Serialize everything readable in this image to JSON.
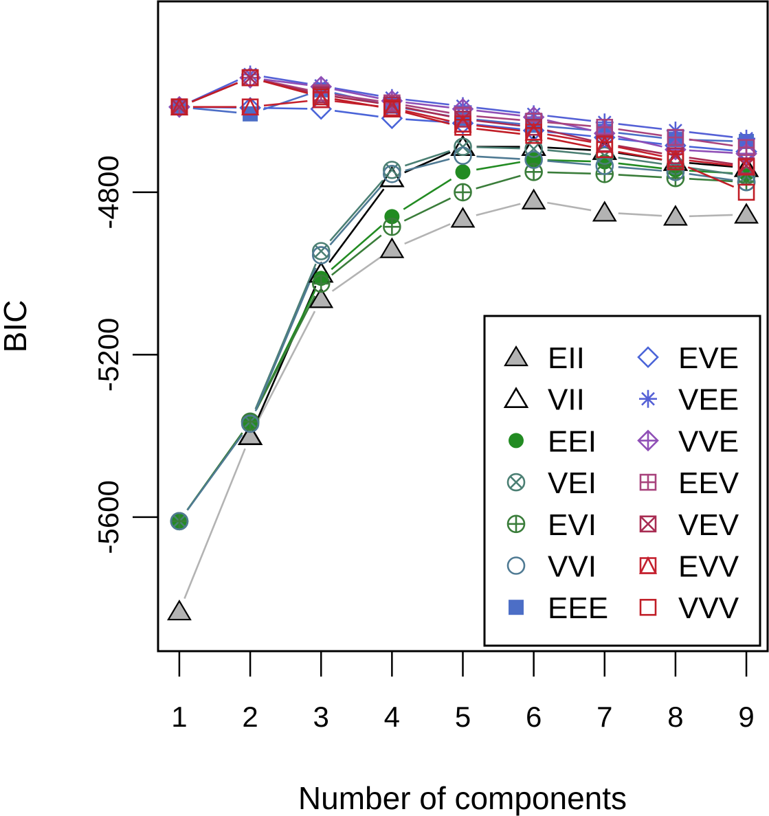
{
  "chart_data": {
    "type": "line",
    "xlabel": "Number of components",
    "ylabel": "BIC",
    "x": [
      1,
      2,
      3,
      4,
      5,
      6,
      7,
      8,
      9
    ],
    "xlim": [
      0.7,
      9.3
    ],
    "ylim": [
      -5930,
      -4330
    ],
    "yticks": [
      -5600,
      -5200,
      -4800
    ],
    "ytick_labels": [
      "-5600",
      "-5200",
      "-4800"
    ],
    "xtick_labels": [
      "1",
      "2",
      "3",
      "4",
      "5",
      "6",
      "7",
      "8",
      "9"
    ],
    "grid": false,
    "legend_position": "bottom-right",
    "legend_columns": 2,
    "series": [
      {
        "name": "EII",
        "color": "#b3b3b3",
        "marker": "triangle-filled",
        "values": [
          -5832,
          -5400,
          -5063,
          -4940,
          -4865,
          -4820,
          -4850,
          -4860,
          -4855
        ]
      },
      {
        "name": "VII",
        "color": "#000000",
        "marker": "triangle-open",
        "values": [
          null,
          -5400,
          -5000,
          -4765,
          -4688,
          -4688,
          -4698,
          -4725,
          -4740
        ]
      },
      {
        "name": "EEI",
        "color": "#228b22",
        "marker": "circle-filled",
        "values": [
          -5610,
          -5365,
          -5012,
          -4860,
          -4750,
          -4720,
          -4725,
          -4745,
          -4755
        ]
      },
      {
        "name": "VEI",
        "color": "#4b7f73",
        "marker": "circle-x",
        "values": [
          -5610,
          -5365,
          -4945,
          -4745,
          -4688,
          -4693,
          -4710,
          -4735,
          -4760
        ]
      },
      {
        "name": "EVI",
        "color": "#3a7d3a",
        "marker": "circle-plus",
        "values": [
          -5610,
          -5365,
          -5025,
          -4885,
          -4800,
          -4750,
          -4755,
          -4765,
          -4775
        ]
      },
      {
        "name": "VVI",
        "color": "#4f7a93",
        "marker": "circle-open",
        "values": [
          -5610,
          -5370,
          -4955,
          -4755,
          -4710,
          -4720,
          -4735,
          -4750,
          -4775
        ]
      },
      {
        "name": "EEE",
        "color": "#4c6ec6",
        "marker": "square-filled",
        "values": [
          -4590,
          -4607,
          -4548,
          -4588,
          -4618,
          -4635,
          -4650,
          -4670,
          -4675
        ]
      },
      {
        "name": "EVE",
        "color": "#4a64d8",
        "marker": "diamond-open",
        "values": [
          -4590,
          -4592,
          -4595,
          -4618,
          -4630,
          -4648,
          -4665,
          -4685,
          -4700
        ]
      },
      {
        "name": "VEE",
        "color": "#5460d6",
        "marker": "asterisk",
        "values": [
          -4590,
          -4510,
          -4538,
          -4568,
          -4588,
          -4608,
          -4628,
          -4648,
          -4668
        ]
      },
      {
        "name": "VVE",
        "color": "#8f4fb6",
        "marker": "diamond-plus",
        "values": [
          -4590,
          -4518,
          -4540,
          -4575,
          -4595,
          -4615,
          -4655,
          -4695,
          -4705
        ]
      },
      {
        "name": "EEV",
        "color": "#a8437d",
        "marker": "square-plus",
        "values": [
          -4590,
          -4518,
          -4555,
          -4580,
          -4610,
          -4625,
          -4640,
          -4665,
          -4690
        ]
      },
      {
        "name": "VEV",
        "color": "#a82c52",
        "marker": "square-x",
        "values": [
          -4590,
          -4518,
          -4560,
          -4585,
          -4620,
          -4640,
          -4680,
          -4710,
          -4735
        ]
      },
      {
        "name": "EVV",
        "color": "#c4202e",
        "marker": "square-triangle",
        "values": [
          -4590,
          -4590,
          -4572,
          -4592,
          -4632,
          -4652,
          -4682,
          -4718,
          -4738
        ]
      },
      {
        "name": "VVV",
        "color": "#c01d26",
        "marker": "square-open",
        "values": [
          -4590,
          -4518,
          -4565,
          -4595,
          -4640,
          -4660,
          -4695,
          -4725,
          -4800
        ]
      }
    ]
  }
}
